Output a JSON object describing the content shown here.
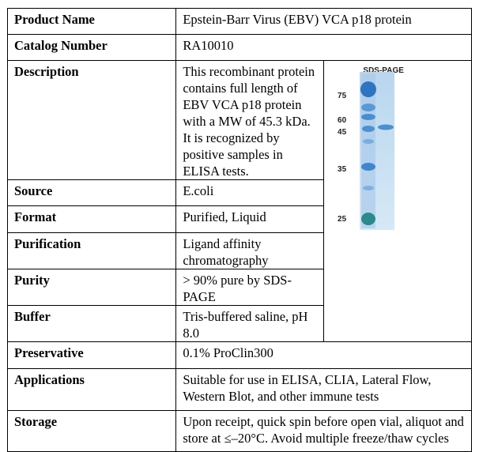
{
  "rows": {
    "product_name": {
      "label": "Product Name",
      "value": "Epstein-Barr Virus (EBV) VCA p18 protein"
    },
    "catalog_number": {
      "label": "Catalog Number",
      "value": "RA10010"
    },
    "description": {
      "label": "Description",
      "value": "This recombinant protein contains full length of EBV VCA p18 protein with a MW of 45.3 kDa. It is recognized by positive samples in ELISA tests."
    },
    "source": {
      "label": "Source",
      "value": "E.coli"
    },
    "format": {
      "label": "Format",
      "value": "Purified, Liquid"
    },
    "purification": {
      "label": "Purification",
      "value": "Ligand affinity chromatography"
    },
    "purity": {
      "label": "Purity",
      "value": "> 90% pure by SDS-PAGE"
    },
    "buffer": {
      "label": "Buffer",
      "value": "Tris-buffered saline, pH 8.0"
    },
    "preservative": {
      "label": "Preservative",
      "value": "0.1% ProClin300"
    },
    "applications": {
      "label": "Applications",
      "value": "Suitable for use in ELISA, CLIA, Lateral Flow, Western Blot, and other immune tests"
    },
    "storage": {
      "label": "Storage",
      "value": "Upon receipt, quick spin before open vial, aliquot and store at ≤–20°C. Avoid multiple freeze/thaw cycles"
    }
  },
  "gel_image": {
    "title": "SDS-PAGE",
    "markers": [
      "75",
      "60",
      "45",
      "35",
      "25"
    ],
    "colors": {
      "ladder": "#3a7fc8",
      "lane_bg": "#cfe3f3",
      "band": "#4a8fd0"
    }
  }
}
